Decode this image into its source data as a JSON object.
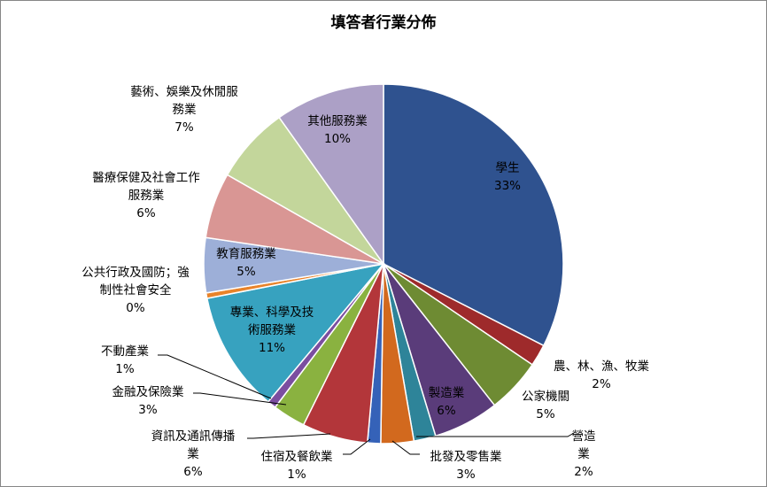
{
  "chart_data": {
    "type": "pie",
    "title": "填答者行業分佈",
    "slices": [
      {
        "name": "學生",
        "lines": [
          "學生"
        ],
        "pct_label": "33%",
        "value": 33,
        "color": "#2F528F"
      },
      {
        "name": "農、林、漁、牧業",
        "lines": [
          "農、林、漁、牧業"
        ],
        "pct_label": "2%",
        "value": 2,
        "color": "#9E2A2B"
      },
      {
        "name": "公家機關",
        "lines": [
          "公家機關"
        ],
        "pct_label": "5%",
        "value": 5,
        "color": "#6E8B33"
      },
      {
        "name": "製造業",
        "lines": [
          "製造業"
        ],
        "pct_label": "6%",
        "value": 6,
        "color": "#5A3C7A"
      },
      {
        "name": "營造業",
        "lines": [
          "營造",
          "業"
        ],
        "pct_label": "2%",
        "value": 2,
        "color": "#2E8499"
      },
      {
        "name": "批發及零售業",
        "lines": [
          "批發及零售業"
        ],
        "pct_label": "3%",
        "value": 3,
        "color": "#D2691E"
      },
      {
        "name": "住宿及餐飲業",
        "lines": [
          "住宿及餐飲業"
        ],
        "pct_label": "1%",
        "value": 1.2,
        "color": "#3562B8"
      },
      {
        "name": "資訊及通訊傳播業",
        "lines": [
          "資訊及通訊傳播",
          "業"
        ],
        "pct_label": "6%",
        "value": 6,
        "color": "#B3363A"
      },
      {
        "name": "金融及保險業",
        "lines": [
          "金融及保險業"
        ],
        "pct_label": "3%",
        "value": 3,
        "color": "#8AB240"
      },
      {
        "name": "不動產業",
        "lines": [
          "不動產業"
        ],
        "pct_label": "1%",
        "value": 0.8,
        "color": "#7B4EA0"
      },
      {
        "name": "專業、科學及技術服務業",
        "lines": [
          "專業、科學及技",
          "術服務業"
        ],
        "pct_label": "11%",
        "value": 11,
        "color": "#37A2BF"
      },
      {
        "name": "公共行政及國防；強制性社會安全",
        "lines": [
          "公共行政及國防；強",
          "制性社會安全"
        ],
        "pct_label": "0%",
        "value": 0.5,
        "color": "#E8832A"
      },
      {
        "name": "教育服務業",
        "lines": [
          "教育服務業"
        ],
        "pct_label": "5%",
        "value": 5,
        "color": "#9DAFD8"
      },
      {
        "name": "醫療保健及社會工作服務業",
        "lines": [
          "醫療保健及社會工作",
          "服務業"
        ],
        "pct_label": "6%",
        "value": 6,
        "color": "#D99694"
      },
      {
        "name": "藝術、娛樂及休閒服務業",
        "lines": [
          "藝術、娛樂及休閒服",
          "務業"
        ],
        "pct_label": "7%",
        "value": 7,
        "color": "#C3D69B"
      },
      {
        "name": "其他服務業",
        "lines": [
          "其他服務業"
        ],
        "pct_label": "10%",
        "value": 10,
        "color": "#ACA0C6"
      }
    ]
  }
}
